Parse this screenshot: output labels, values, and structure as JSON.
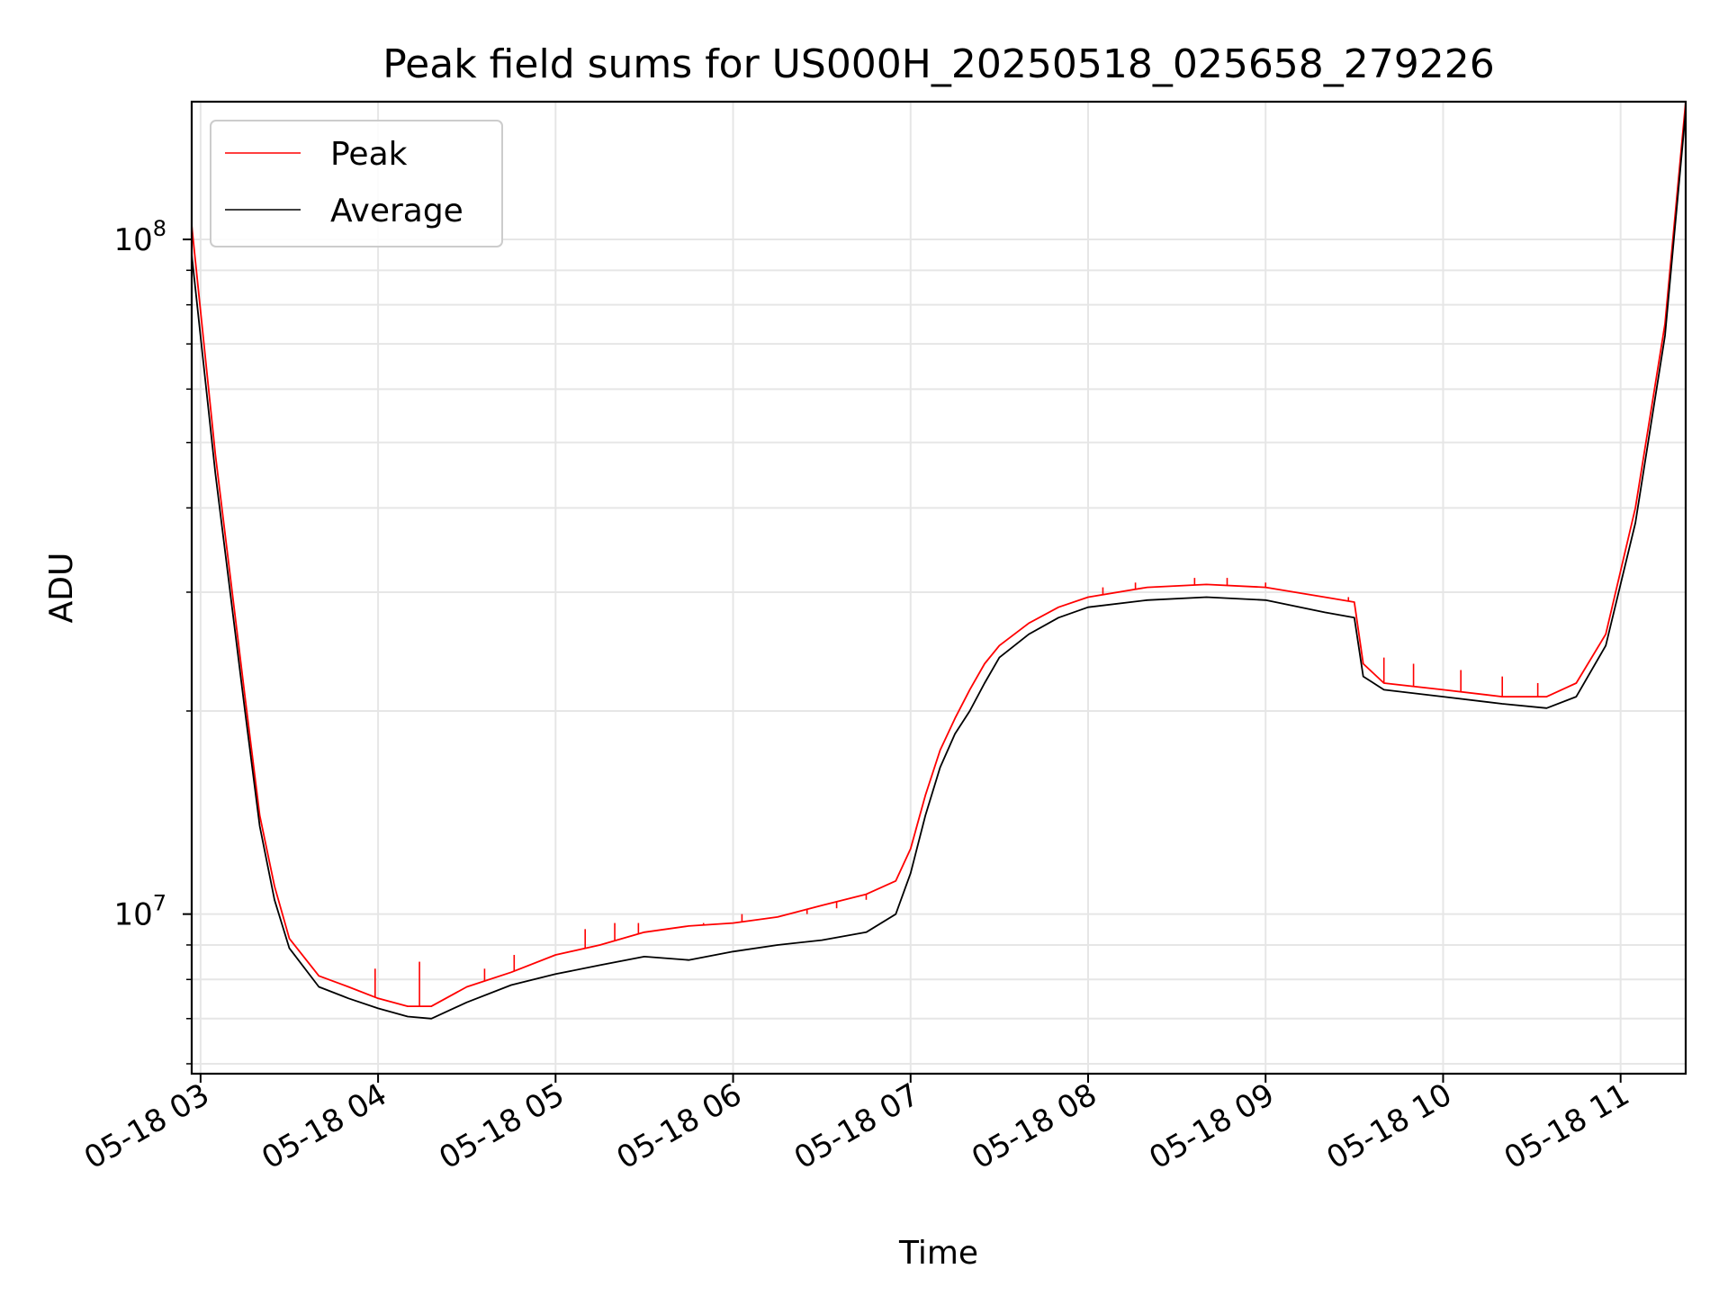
{
  "chart_data": {
    "type": "line",
    "title": "Peak field sums for US000H_20250518_025658_279226",
    "xlabel": "Time",
    "ylabel": "ADU",
    "x_scale": "time",
    "y_scale": "log",
    "xlim": [
      "2025-05-18 02:57",
      "2025-05-18 11:22"
    ],
    "ylim": [
      5800000,
      160000000
    ],
    "grid": true,
    "legend_position": "top-left",
    "x_ticks": [
      "05-18 03",
      "05-18 04",
      "05-18 05",
      "05-18 06",
      "05-18 07",
      "05-18 08",
      "05-18 09",
      "05-18 10",
      "05-18 11"
    ],
    "y_ticks": [
      {
        "value": 10000000,
        "base": "10",
        "exp": "7"
      },
      {
        "value": 100000000,
        "base": "10",
        "exp": "8"
      }
    ],
    "series": [
      {
        "name": "Peak",
        "color": "#ff0000",
        "x": [
          "2025-05-18 02:57",
          "2025-05-18 03:05",
          "2025-05-18 03:15",
          "2025-05-18 03:20",
          "2025-05-18 03:25",
          "2025-05-18 03:30",
          "2025-05-18 03:40",
          "2025-05-18 03:50",
          "2025-05-18 04:00",
          "2025-05-18 04:10",
          "2025-05-18 04:18",
          "2025-05-18 04:30",
          "2025-05-18 04:45",
          "2025-05-18 05:00",
          "2025-05-18 05:15",
          "2025-05-18 05:30",
          "2025-05-18 05:45",
          "2025-05-18 06:00",
          "2025-05-18 06:15",
          "2025-05-18 06:30",
          "2025-05-18 06:45",
          "2025-05-18 06:55",
          "2025-05-18 07:00",
          "2025-05-18 07:05",
          "2025-05-18 07:10",
          "2025-05-18 07:15",
          "2025-05-18 07:20",
          "2025-05-18 07:25",
          "2025-05-18 07:30",
          "2025-05-18 07:40",
          "2025-05-18 07:50",
          "2025-05-18 08:00",
          "2025-05-18 08:20",
          "2025-05-18 08:40",
          "2025-05-18 09:00",
          "2025-05-18 09:20",
          "2025-05-18 09:30",
          "2025-05-18 09:33",
          "2025-05-18 09:40",
          "2025-05-18 10:00",
          "2025-05-18 10:20",
          "2025-05-18 10:35",
          "2025-05-18 10:45",
          "2025-05-18 10:55",
          "2025-05-18 11:05",
          "2025-05-18 11:15",
          "2025-05-18 11:22"
        ],
        "values": [
          105000000,
          48000000,
          21000000,
          14000000,
          11000000,
          9200000,
          8100000,
          7800000,
          7500000,
          7300000,
          7300000,
          7800000,
          8200000,
          8700000,
          9000000,
          9400000,
          9600000,
          9700000,
          9900000,
          10300000,
          10700000,
          11200000,
          12500000,
          15000000,
          17500000,
          19500000,
          21500000,
          23500000,
          25000000,
          27000000,
          28500000,
          29500000,
          30500000,
          30800000,
          30500000,
          29500000,
          29000000,
          23500000,
          22000000,
          21500000,
          21000000,
          21000000,
          22000000,
          26000000,
          40000000,
          75000000,
          160000000
        ],
        "spikes": [
          {
            "x": "2025-05-18 03:59",
            "value": 8300000
          },
          {
            "x": "2025-05-18 04:14",
            "value": 8500000
          },
          {
            "x": "2025-05-18 04:36",
            "value": 8300000
          },
          {
            "x": "2025-05-18 04:46",
            "value": 8700000
          },
          {
            "x": "2025-05-18 05:10",
            "value": 9500000
          },
          {
            "x": "2025-05-18 05:20",
            "value": 9700000
          },
          {
            "x": "2025-05-18 05:28",
            "value": 9700000
          },
          {
            "x": "2025-05-18 05:50",
            "value": 9700000
          },
          {
            "x": "2025-05-18 06:03",
            "value": 10000000
          },
          {
            "x": "2025-05-18 06:25",
            "value": 10000000
          },
          {
            "x": "2025-05-18 06:35",
            "value": 10200000
          },
          {
            "x": "2025-05-18 06:45",
            "value": 10500000
          },
          {
            "x": "2025-05-18 08:05",
            "value": 30500000
          },
          {
            "x": "2025-05-18 08:16",
            "value": 31000000
          },
          {
            "x": "2025-05-18 08:36",
            "value": 31500000
          },
          {
            "x": "2025-05-18 08:47",
            "value": 31500000
          },
          {
            "x": "2025-05-18 09:00",
            "value": 31000000
          },
          {
            "x": "2025-05-18 09:28",
            "value": 29500000
          },
          {
            "x": "2025-05-18 09:40",
            "value": 24000000
          },
          {
            "x": "2025-05-18 09:50",
            "value": 23500000
          },
          {
            "x": "2025-05-18 10:06",
            "value": 23000000
          },
          {
            "x": "2025-05-18 10:20",
            "value": 22500000
          },
          {
            "x": "2025-05-18 10:32",
            "value": 22000000
          }
        ]
      },
      {
        "name": "Average",
        "color": "#000000",
        "x": [
          "2025-05-18 02:57",
          "2025-05-18 03:05",
          "2025-05-18 03:15",
          "2025-05-18 03:20",
          "2025-05-18 03:25",
          "2025-05-18 03:30",
          "2025-05-18 03:40",
          "2025-05-18 03:50",
          "2025-05-18 04:00",
          "2025-05-18 04:10",
          "2025-05-18 04:18",
          "2025-05-18 04:30",
          "2025-05-18 04:45",
          "2025-05-18 05:00",
          "2025-05-18 05:15",
          "2025-05-18 05:30",
          "2025-05-18 05:45",
          "2025-05-18 06:00",
          "2025-05-18 06:15",
          "2025-05-18 06:30",
          "2025-05-18 06:45",
          "2025-05-18 06:55",
          "2025-05-18 07:00",
          "2025-05-18 07:05",
          "2025-05-18 07:10",
          "2025-05-18 07:15",
          "2025-05-18 07:20",
          "2025-05-18 07:25",
          "2025-05-18 07:30",
          "2025-05-18 07:40",
          "2025-05-18 07:50",
          "2025-05-18 08:00",
          "2025-05-18 08:20",
          "2025-05-18 08:40",
          "2025-05-18 09:00",
          "2025-05-18 09:20",
          "2025-05-18 09:30",
          "2025-05-18 09:33",
          "2025-05-18 09:40",
          "2025-05-18 10:00",
          "2025-05-18 10:20",
          "2025-05-18 10:35",
          "2025-05-18 10:45",
          "2025-05-18 10:55",
          "2025-05-18 11:05",
          "2025-05-18 11:15",
          "2025-05-18 11:22"
        ],
        "values": [
          95000000,
          45000000,
          20000000,
          13500000,
          10500000,
          8900000,
          7800000,
          7500000,
          7250000,
          7050000,
          7000000,
          7400000,
          7850000,
          8150000,
          8400000,
          8650000,
          8550000,
          8800000,
          9000000,
          9150000,
          9400000,
          10000000,
          11500000,
          14000000,
          16500000,
          18500000,
          20000000,
          22000000,
          24000000,
          26000000,
          27500000,
          28500000,
          29200000,
          29500000,
          29200000,
          28000000,
          27500000,
          22500000,
          21500000,
          21000000,
          20500000,
          20200000,
          21000000,
          25000000,
          38000000,
          72000000,
          155000000
        ]
      }
    ]
  }
}
